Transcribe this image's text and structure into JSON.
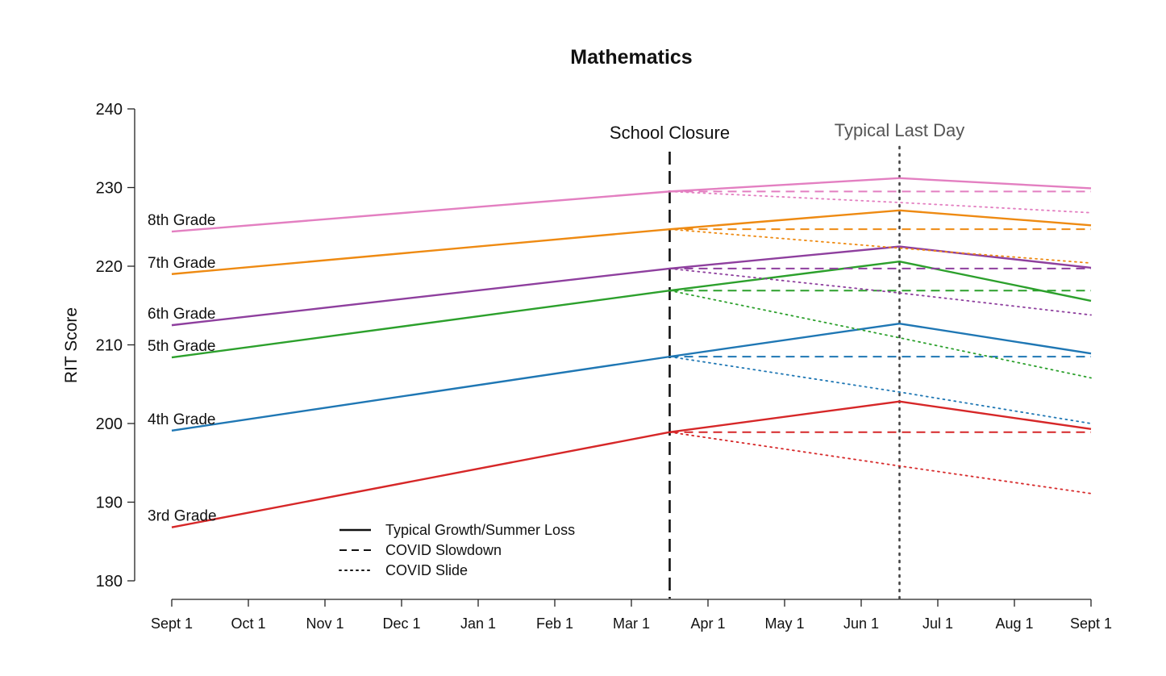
{
  "chart_data": {
    "type": "line",
    "title": "Mathematics",
    "ylabel": "RIT Score",
    "xlabel": "",
    "ylim": [
      180,
      240
    ],
    "yticks": [
      180,
      190,
      200,
      210,
      220,
      230,
      240
    ],
    "x_tick_labels": [
      "Sept 1",
      "Oct 1",
      "Nov 1",
      "Dec 1",
      "Jan 1",
      "Feb 1",
      "Mar 1",
      "Apr 1",
      "May 1",
      "Jun 1",
      "Jul 1",
      "Aug 1",
      "Sept 1"
    ],
    "x_range_months": [
      0,
      12
    ],
    "annotations": {
      "school_closure": {
        "label": "School Closure",
        "x_month": 6.5,
        "color": "#111111"
      },
      "typical_last_day": {
        "label": "Typical Last Day",
        "x_month": 9.5,
        "color": "#555555"
      }
    },
    "legend": {
      "position": "bottom-center",
      "entries": [
        {
          "label": "Typical Growth/Summer Loss",
          "style": "solid"
        },
        {
          "label": "COVID Slowdown",
          "style": "dashed"
        },
        {
          "label": "COVID Slide",
          "style": "dotted"
        }
      ]
    },
    "series": [
      {
        "name": "3rd Grade",
        "color": "#d62728",
        "start": 186.8,
        "closure": 198.9,
        "last_day": 202.8,
        "end": 199.3,
        "slowdown_end": 198.9,
        "slide_last_day": 194.6,
        "slide_end": 191.1
      },
      {
        "name": "4th Grade",
        "color": "#1f77b4",
        "start": 199.1,
        "closure": 208.5,
        "last_day": 212.7,
        "end": 208.9,
        "slowdown_end": 208.5,
        "slide_last_day": 204.0,
        "slide_end": 200.0
      },
      {
        "name": "5th Grade",
        "color": "#2ca02c",
        "start": 208.4,
        "closure": 216.9,
        "last_day": 220.6,
        "end": 215.6,
        "slowdown_end": 216.9,
        "slide_last_day": 210.9,
        "slide_end": 205.8
      },
      {
        "name": "6th Grade",
        "color": "#8e3f9e",
        "start": 212.5,
        "closure": 219.7,
        "last_day": 222.5,
        "end": 219.8,
        "slowdown_end": 219.7,
        "slide_last_day": 216.6,
        "slide_end": 213.8
      },
      {
        "name": "7th Grade",
        "color": "#ee8a12",
        "start": 219.0,
        "closure": 224.7,
        "last_day": 227.1,
        "end": 225.2,
        "slowdown_end": 224.7,
        "slide_last_day": 222.3,
        "slide_end": 220.4
      },
      {
        "name": "8th Grade",
        "color": "#e37fc1",
        "start": 224.4,
        "closure": 229.5,
        "last_day": 231.2,
        "end": 229.9,
        "slowdown_end": 229.5,
        "slide_last_day": 228.1,
        "slide_end": 226.8
      }
    ]
  }
}
